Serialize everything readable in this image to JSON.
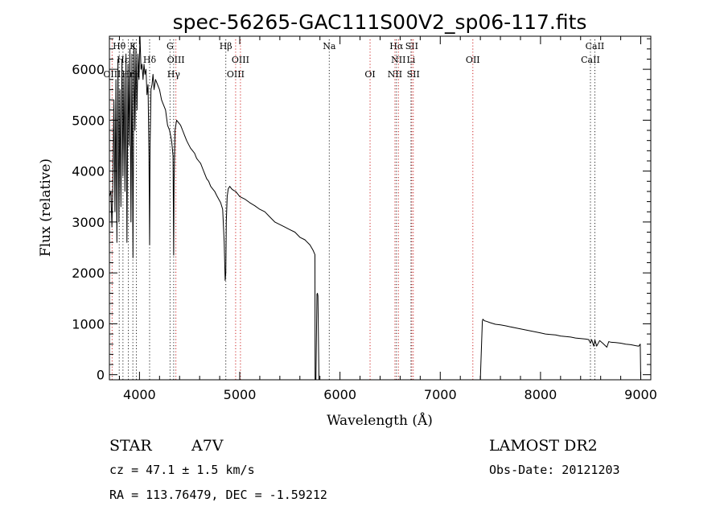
{
  "title": "spec-56265-GAC111S00V2_sp06-117.fits",
  "object_class": "STAR",
  "subclass": "A7V",
  "survey": "LAMOST DR2",
  "cz_line": "cz = 47.1 ± 1.5 km/s",
  "obs_date_line": "Obs-Date: 20121203",
  "coords_line": "RA = 113.76479, DEC =  -1.59212",
  "chart_data": {
    "type": "line",
    "title": "spec-56265-GAC111S00V2_sp06-117.fits",
    "xlabel": "Wavelength (Å)",
    "ylabel": "Flux (relative)",
    "xlim": [
      3700,
      9100
    ],
    "ylim": [
      -100,
      6650
    ],
    "xticks": [
      4000,
      5000,
      6000,
      7000,
      8000,
      9000
    ],
    "yticks": [
      0,
      1000,
      2000,
      3000,
      4000,
      5000,
      6000
    ],
    "grid": false,
    "colors": {
      "line": "#000000",
      "marker_absorption": "#222222",
      "marker_emission": "#cc2222"
    },
    "series": [
      {
        "x": [
          3700,
          3715,
          3725,
          3735,
          3745,
          3755,
          3765,
          3775,
          3785,
          3795,
          3805,
          3815,
          3825,
          3835,
          3845,
          3855,
          3865,
          3875,
          3885,
          3895,
          3905,
          3915,
          3925,
          3935,
          3945,
          3955,
          3965,
          3975,
          3985,
          3995,
          4005,
          4015,
          4025,
          4035,
          4045,
          4055,
          4065,
          4075,
          4085,
          4095,
          4101,
          4105,
          4115,
          4125,
          4135,
          4145,
          4160,
          4180,
          4200,
          4220,
          4240,
          4260,
          4280,
          4300,
          4320,
          4335,
          4341,
          4345,
          4355,
          4370,
          4390,
          4410,
          4430,
          4450,
          4470,
          4490,
          4510,
          4530,
          4550,
          4570,
          4590,
          4610,
          4630,
          4650,
          4670,
          4690,
          4710,
          4730,
          4750,
          4770,
          4790,
          4810,
          4830,
          4845,
          4855,
          4861,
          4866,
          4875,
          4885,
          4900,
          4920,
          4940,
          4960,
          4980,
          5000,
          5050,
          5100,
          5150,
          5200,
          5250,
          5300,
          5350,
          5400,
          5450,
          5500,
          5550,
          5600,
          5650,
          5700,
          5730,
          5745,
          5750,
          5752,
          5760,
          5770,
          5775,
          5780,
          5790,
          5800,
          5900,
          6000,
          6200,
          6400,
          6600,
          6800,
          7000,
          7200,
          7300,
          7400,
          7420,
          7425,
          7430,
          7440,
          7460,
          7500,
          7550,
          7600,
          7650,
          7700,
          7750,
          7800,
          7850,
          7900,
          7950,
          8000,
          8050,
          8100,
          8150,
          8200,
          8250,
          8300,
          8350,
          8400,
          8450,
          8480,
          8498,
          8510,
          8530,
          8542,
          8560,
          8590,
          8620,
          8662,
          8680,
          8700,
          8750,
          8800,
          8850,
          8900,
          8950,
          8980,
          8995,
          9000
        ],
        "y": [
          3500,
          3600,
          2900,
          3800,
          5400,
          3200,
          5800,
          2600,
          6200,
          3000,
          5600,
          3300,
          6200,
          3900,
          5900,
          3600,
          6300,
          2600,
          6100,
          4500,
          6400,
          3000,
          6300,
          2300,
          6500,
          4800,
          6400,
          5200,
          6300,
          5800,
          6700,
          6000,
          6100,
          5800,
          6100,
          5900,
          6000,
          5500,
          5700,
          4300,
          2550,
          4400,
          5600,
          5700,
          5900,
          5600,
          5800,
          5700,
          5600,
          5400,
          5300,
          5200,
          4900,
          4800,
          4600,
          4300,
          2350,
          3800,
          4800,
          5000,
          4950,
          4900,
          4800,
          4700,
          4600,
          4520,
          4450,
          4400,
          4350,
          4250,
          4200,
          4150,
          4050,
          3950,
          3850,
          3800,
          3700,
          3650,
          3600,
          3520,
          3450,
          3380,
          3250,
          2600,
          1850,
          2000,
          3000,
          3500,
          3650,
          3700,
          3650,
          3620,
          3600,
          3550,
          3500,
          3450,
          3380,
          3320,
          3250,
          3200,
          3100,
          3000,
          2950,
          2900,
          2850,
          2800,
          2700,
          2650,
          2550,
          2450,
          2380,
          2360,
          -100,
          -100,
          1580,
          1600,
          1550,
          -100,
          -100,
          -100,
          -100,
          -100,
          -100,
          -100,
          -100,
          -100,
          -100,
          -100,
          -100,
          1050,
          1090,
          1080,
          1060,
          1050,
          1020,
          990,
          980,
          960,
          940,
          920,
          900,
          880,
          860,
          840,
          820,
          800,
          790,
          780,
          760,
          750,
          740,
          720,
          710,
          700,
          690,
          620,
          690,
          560,
          680,
          560,
          670,
          620,
          540,
          650,
          640,
          630,
          620,
          600,
          590,
          570,
          560,
          600,
          -100
        ]
      }
    ],
    "line_markers": [
      {
        "label": "Hθ",
        "x": 3798,
        "row": 0,
        "kind": "absorption"
      },
      {
        "label": "K",
        "x": 3934,
        "row": 0,
        "kind": "absorption"
      },
      {
        "label": "Hε",
        "x": 3835,
        "row": 1,
        "kind": "absorption"
      },
      {
        "label": "H",
        "x": 3969,
        "row": 2,
        "kind": "absorption"
      },
      {
        "label": "Hδ",
        "x": 4101,
        "row": 1,
        "kind": "absorption"
      },
      {
        "label": "OIII",
        "x": 3727,
        "row": 2,
        "kind": "emission"
      },
      {
        "label": "Hη",
        "x": 3889,
        "row": 2,
        "kind": "absorption"
      },
      {
        "label": "G",
        "x": 4305,
        "row": 0,
        "kind": "absorption"
      },
      {
        "label": "OIII",
        "x": 4363,
        "row": 1,
        "kind": "emission"
      },
      {
        "label": "Hγ",
        "x": 4341,
        "row": 2,
        "kind": "absorption"
      },
      {
        "label": "Hβ",
        "x": 4861,
        "row": 0,
        "kind": "absorption"
      },
      {
        "label": "OIII",
        "x": 5007,
        "row": 1,
        "kind": "emission"
      },
      {
        "label": "OIII",
        "x": 4959,
        "row": 2,
        "kind": "emission"
      },
      {
        "label": "Na",
        "x": 5893,
        "row": 0,
        "kind": "absorption"
      },
      {
        "label": "OI",
        "x": 6300,
        "row": 2,
        "kind": "emission"
      },
      {
        "label": "Hα",
        "x": 6563,
        "row": 0,
        "kind": "absorption"
      },
      {
        "label": "SII",
        "x": 6716,
        "row": 0,
        "kind": "emission"
      },
      {
        "label": "NII",
        "x": 6583,
        "row": 1,
        "kind": "emission"
      },
      {
        "label": "Li",
        "x": 6708,
        "row": 1,
        "kind": "absorption"
      },
      {
        "label": "NII",
        "x": 6548,
        "row": 2,
        "kind": "emission"
      },
      {
        "label": "SII",
        "x": 6731,
        "row": 2,
        "kind": "emission"
      },
      {
        "label": "OII",
        "x": 7325,
        "row": 1,
        "kind": "emission"
      },
      {
        "label": "CaII",
        "x": 8542,
        "row": 0,
        "kind": "absorption"
      },
      {
        "label": "CaII",
        "x": 8498,
        "row": 1,
        "kind": "absorption"
      }
    ]
  }
}
